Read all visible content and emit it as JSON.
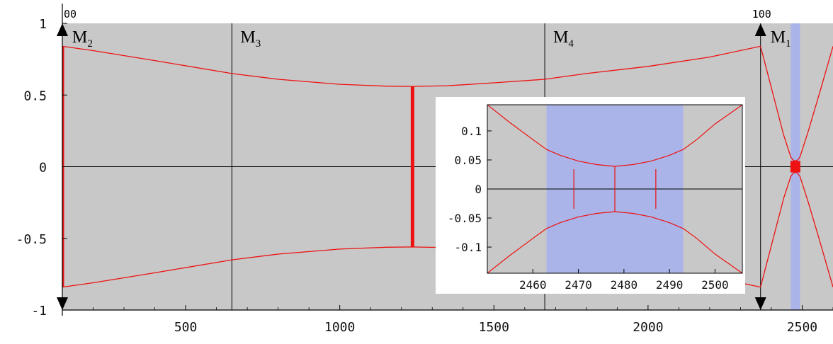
{
  "chart_data": {
    "type": "line",
    "title": "",
    "xlabel": "",
    "ylabel": "",
    "xlim": [
      75,
      2600
    ],
    "ylim": [
      -1.03,
      1.03
    ],
    "plot_range": {
      "x": [
        100,
        2600
      ],
      "y": [
        -1,
        1
      ]
    },
    "background_color": "#c8c8c8",
    "beam_color": "#ee1111",
    "waist_band_color": "#aab4e8",
    "xticks": [
      500,
      1000,
      1500,
      2000,
      2500
    ],
    "yticks": [
      1,
      0.5,
      0,
      -0.5,
      -1
    ],
    "ytick_labels": [
      "1",
      "0.5",
      "0",
      "-0.5",
      "-1"
    ],
    "grid": false,
    "corner_labels": [
      {
        "x": 100,
        "text": "00"
      },
      {
        "x": 2365,
        "text": "100"
      }
    ],
    "mirrors": [
      {
        "name": "M",
        "sub": "2",
        "x": 100,
        "arrows": true
      },
      {
        "name": "M",
        "sub": "3",
        "x": 650,
        "arrows": false
      },
      {
        "name": "M",
        "sub": "4",
        "x": 1665,
        "arrows": false
      },
      {
        "name": "M",
        "sub": "1",
        "x": 2365,
        "arrows": true
      }
    ],
    "waist_band": {
      "x0": 2463,
      "x1": 2493
    },
    "series": [
      {
        "x": [
          100,
          200,
          400,
          650,
          800,
          1000,
          1150,
          1236,
          1350,
          1500,
          1665,
          1800,
          2000,
          2200,
          2365
        ],
        "y": [
          0.84,
          0.81,
          0.74,
          0.65,
          0.61,
          0.575,
          0.562,
          0.56,
          0.565,
          0.585,
          0.61,
          0.65,
          0.7,
          0.765,
          0.84
        ]
      },
      {
        "x": [
          2365,
          2400,
          2440,
          2463,
          2470,
          2478,
          2486,
          2493,
          2520,
          2560,
          2600
        ],
        "y": [
          0.84,
          0.55,
          0.22,
          0.068,
          0.048,
          0.039,
          0.048,
          0.068,
          0.25,
          0.54,
          0.84
        ]
      }
    ],
    "apertures": [
      {
        "x": 100,
        "half_height": 0.84
      },
      {
        "x": 1236,
        "half_height": 0.56
      }
    ],
    "focus_marker": {
      "x": 2478,
      "half_height": 0.04
    },
    "inset": {
      "xlim": [
        2450,
        2506
      ],
      "ylim": [
        -0.145,
        0.145
      ],
      "xticks": [
        2460,
        2470,
        2480,
        2490,
        2500
      ],
      "yticks": [
        0.1,
        0.05,
        0,
        -0.05,
        -0.1
      ],
      "ytick_labels": [
        "0.1",
        "0.05",
        "0",
        "-0.05",
        "-0.1"
      ],
      "series": [
        {
          "x": [
            2450,
            2455,
            2460,
            2463,
            2466,
            2470,
            2474,
            2478,
            2482,
            2486,
            2490,
            2493,
            2496,
            2500,
            2506
          ],
          "y": [
            0.145,
            0.114,
            0.085,
            0.068,
            0.058,
            0.048,
            0.042,
            0.039,
            0.042,
            0.048,
            0.058,
            0.068,
            0.085,
            0.112,
            0.145
          ]
        }
      ],
      "markers_x": [
        2469,
        2478,
        2487
      ]
    }
  }
}
